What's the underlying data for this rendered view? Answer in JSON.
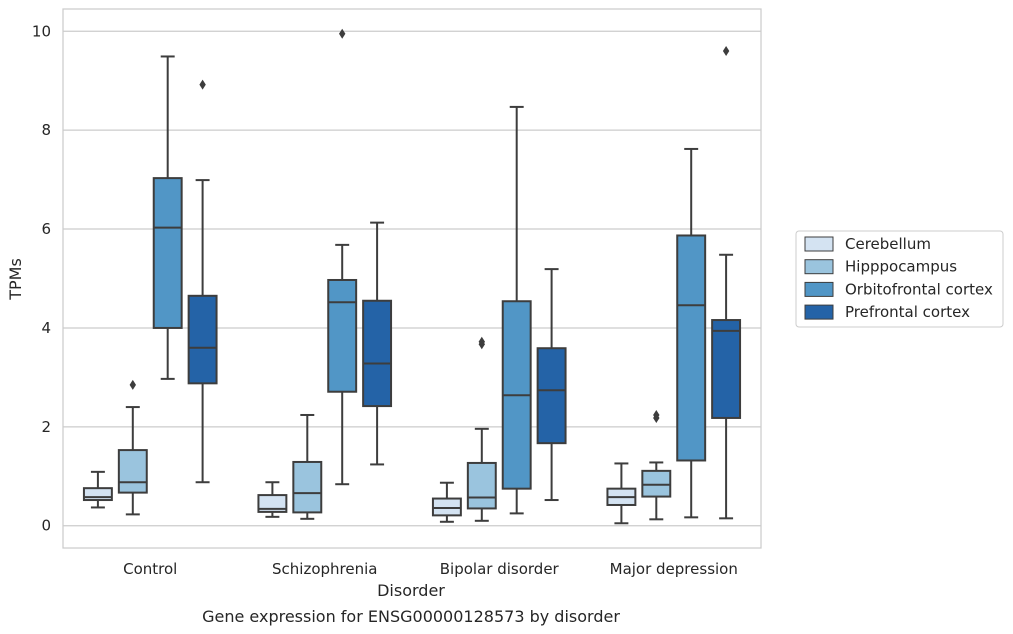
{
  "caption": "Gene expression for ENSG00000128573 by disorder",
  "chart_data": {
    "type": "box",
    "xlabel": "Disorder",
    "ylabel": "TPMs",
    "ylim": [
      -0.45,
      10.45
    ],
    "yticks": [
      0,
      2,
      4,
      6,
      8,
      10
    ],
    "grid": "horizontal",
    "legend_position": "right",
    "categories": [
      "Control",
      "Schizophrenia",
      "Bipolar disorder",
      "Major depression"
    ],
    "series": [
      {
        "name": "Cerebellum",
        "color": "#d4e3f2",
        "boxes": [
          {
            "whislo": 0.37,
            "q1": 0.52,
            "med": 0.58,
            "q3": 0.76,
            "whishi": 1.09,
            "fliers": []
          },
          {
            "whislo": 0.18,
            "q1": 0.28,
            "med": 0.34,
            "q3": 0.62,
            "whishi": 0.88,
            "fliers": []
          },
          {
            "whislo": 0.08,
            "q1": 0.21,
            "med": 0.36,
            "q3": 0.55,
            "whishi": 0.87,
            "fliers": []
          },
          {
            "whislo": 0.05,
            "q1": 0.42,
            "med": 0.58,
            "q3": 0.75,
            "whishi": 1.26,
            "fliers": []
          }
        ]
      },
      {
        "name": "Hipppocampus",
        "color": "#9ac4de",
        "boxes": [
          {
            "whislo": 0.23,
            "q1": 0.67,
            "med": 0.88,
            "q3": 1.53,
            "whishi": 2.4,
            "fliers": [
              2.85
            ]
          },
          {
            "whislo": 0.14,
            "q1": 0.27,
            "med": 0.66,
            "q3": 1.29,
            "whishi": 2.24,
            "fliers": []
          },
          {
            "whislo": 0.1,
            "q1": 0.35,
            "med": 0.57,
            "q3": 1.27,
            "whishi": 1.96,
            "fliers": [
              3.67,
              3.72
            ]
          },
          {
            "whislo": 0.13,
            "q1": 0.59,
            "med": 0.83,
            "q3": 1.11,
            "whishi": 1.28,
            "fliers": [
              2.18,
              2.24
            ]
          }
        ]
      },
      {
        "name": "Orbitofrontal cortex",
        "color": "#5196c6",
        "boxes": [
          {
            "whislo": 2.97,
            "q1": 4.0,
            "med": 6.03,
            "q3": 7.03,
            "whishi": 9.49,
            "fliers": []
          },
          {
            "whislo": 0.84,
            "q1": 2.71,
            "med": 4.52,
            "q3": 4.97,
            "whishi": 5.68,
            "fliers": [
              9.95
            ]
          },
          {
            "whislo": 0.25,
            "q1": 0.75,
            "med": 2.64,
            "q3": 4.54,
            "whishi": 8.47,
            "fliers": []
          },
          {
            "whislo": 0.17,
            "q1": 1.32,
            "med": 4.46,
            "q3": 5.87,
            "whishi": 7.62,
            "fliers": []
          }
        ]
      },
      {
        "name": "Prefrontal cortex",
        "color": "#2463a7",
        "boxes": [
          {
            "whislo": 0.88,
            "q1": 2.88,
            "med": 3.6,
            "q3": 4.65,
            "whishi": 6.99,
            "fliers": [
              8.92
            ]
          },
          {
            "whislo": 1.24,
            "q1": 2.42,
            "med": 3.28,
            "q3": 4.55,
            "whishi": 6.13,
            "fliers": []
          },
          {
            "whislo": 0.52,
            "q1": 1.67,
            "med": 2.74,
            "q3": 3.59,
            "whishi": 5.19,
            "fliers": []
          },
          {
            "whislo": 0.15,
            "q1": 2.18,
            "med": 3.94,
            "q3": 4.16,
            "whishi": 5.48,
            "fliers": [
              9.6
            ]
          }
        ]
      }
    ]
  }
}
